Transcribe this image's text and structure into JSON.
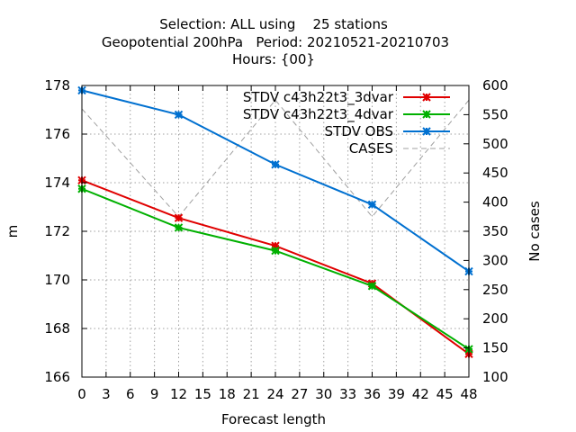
{
  "chart_data": {
    "type": "line",
    "title_lines": [
      "Selection: ALL using    25 stations",
      "Geopotential 200hPa   Period: 20210521-20210703",
      "Hours: {00}"
    ],
    "xlabel": "Forecast length",
    "ylabel": "m",
    "y2label": "No cases",
    "xlim": [
      0,
      48
    ],
    "ylim": [
      166,
      178
    ],
    "y2lim": [
      100,
      600
    ],
    "xticks": [
      0,
      3,
      6,
      9,
      12,
      15,
      18,
      21,
      24,
      27,
      30,
      33,
      36,
      39,
      42,
      45,
      48
    ],
    "yticks": [
      166,
      168,
      170,
      172,
      174,
      176,
      178
    ],
    "y2ticks": [
      100,
      150,
      200,
      250,
      300,
      350,
      400,
      450,
      500,
      550,
      600
    ],
    "grid": true,
    "legend_position": "top-right",
    "x": [
      0,
      12,
      24,
      36,
      48
    ],
    "series": [
      {
        "name": "STDV c43h22t3_3dvar",
        "axis": "left",
        "color": "#e00000",
        "values": [
          174.1,
          172.55,
          171.4,
          169.85,
          166.95
        ]
      },
      {
        "name": "STDV c43h22t3_4dvar",
        "axis": "left",
        "color": "#00b000",
        "values": [
          173.75,
          172.15,
          171.2,
          169.75,
          167.15
        ]
      },
      {
        "name": "STDV OBS",
        "axis": "left",
        "color": "#0070d0",
        "values": [
          177.8,
          176.8,
          174.75,
          173.1,
          170.35
        ]
      },
      {
        "name": "CASES",
        "axis": "right",
        "color": "#a0a0a0",
        "dashed": true,
        "values": [
          560,
          375,
          575,
          375,
          575
        ]
      }
    ]
  }
}
